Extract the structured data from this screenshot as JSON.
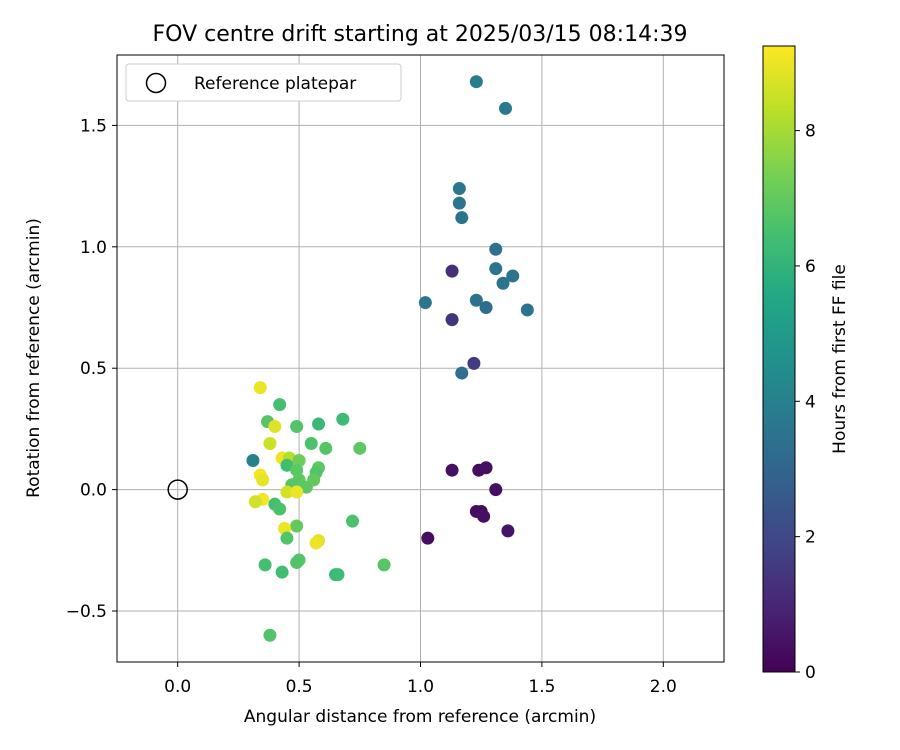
{
  "chart_data": {
    "type": "scatter",
    "title": "FOV centre drift starting at 2025/03/15 08:14:39",
    "xlabel": "Angular distance from reference (arcmin)",
    "ylabel": "Rotation from reference (arcmin)",
    "xlim": [
      -0.25,
      2.25
    ],
    "ylim": [
      -0.71,
      1.79
    ],
    "xticks": [
      0.0,
      0.5,
      1.0,
      1.5,
      2.0
    ],
    "xtick_labels": [
      "0.0",
      "0.5",
      "1.0",
      "1.5",
      "2.0"
    ],
    "yticks": [
      -0.5,
      0.0,
      0.5,
      1.0,
      1.5
    ],
    "ytick_labels": [
      "−0.5",
      "0.0",
      "0.5",
      "1.0",
      "1.5"
    ],
    "grid": true,
    "legend": {
      "position": "top-left",
      "entries": [
        {
          "label": "Reference platepar",
          "marker": "open-circle"
        }
      ]
    },
    "reference_point": {
      "x": 0.0,
      "y": 0.0
    },
    "colorbar": {
      "label": "Hours from first FF file",
      "colormap": "viridis",
      "range": [
        0,
        9.25
      ],
      "ticks": [
        0,
        2,
        4,
        6,
        8
      ],
      "tick_labels": [
        "0",
        "2",
        "4",
        "6",
        "8"
      ]
    },
    "points": [
      {
        "x": 1.23,
        "y": 1.68,
        "hours": 3.8
      },
      {
        "x": 1.35,
        "y": 1.57,
        "hours": 3.7
      },
      {
        "x": 1.16,
        "y": 1.24,
        "hours": 3.6
      },
      {
        "x": 1.16,
        "y": 1.18,
        "hours": 3.6
      },
      {
        "x": 1.17,
        "y": 1.12,
        "hours": 3.5
      },
      {
        "x": 1.31,
        "y": 0.99,
        "hours": 3.4
      },
      {
        "x": 1.31,
        "y": 0.91,
        "hours": 3.5
      },
      {
        "x": 1.38,
        "y": 0.88,
        "hours": 3.5
      },
      {
        "x": 1.34,
        "y": 0.85,
        "hours": 3.5
      },
      {
        "x": 1.13,
        "y": 0.9,
        "hours": 1.2
      },
      {
        "x": 1.02,
        "y": 0.77,
        "hours": 3.6
      },
      {
        "x": 1.23,
        "y": 0.78,
        "hours": 3.4
      },
      {
        "x": 1.27,
        "y": 0.75,
        "hours": 3.3
      },
      {
        "x": 1.44,
        "y": 0.74,
        "hours": 3.5
      },
      {
        "x": 1.13,
        "y": 0.7,
        "hours": 1.4
      },
      {
        "x": 1.22,
        "y": 0.52,
        "hours": 1.6
      },
      {
        "x": 1.17,
        "y": 0.48,
        "hours": 3.4
      },
      {
        "x": 1.13,
        "y": 0.08,
        "hours": 0.4
      },
      {
        "x": 1.24,
        "y": 0.08,
        "hours": 0.3
      },
      {
        "x": 1.27,
        "y": 0.09,
        "hours": 0.4
      },
      {
        "x": 1.31,
        "y": 0.0,
        "hours": 0.4
      },
      {
        "x": 1.23,
        "y": -0.09,
        "hours": 0.3
      },
      {
        "x": 1.25,
        "y": -0.09,
        "hours": 0.3
      },
      {
        "x": 1.26,
        "y": -0.11,
        "hours": 0.4
      },
      {
        "x": 1.36,
        "y": -0.17,
        "hours": 0.5
      },
      {
        "x": 1.03,
        "y": -0.2,
        "hours": 0.3
      },
      {
        "x": 0.31,
        "y": 0.12,
        "hours": 4.0
      },
      {
        "x": 0.34,
        "y": 0.42,
        "hours": 9.0
      },
      {
        "x": 0.42,
        "y": 0.35,
        "hours": 6.5
      },
      {
        "x": 0.37,
        "y": 0.28,
        "hours": 6.8
      },
      {
        "x": 0.49,
        "y": 0.26,
        "hours": 6.7
      },
      {
        "x": 0.58,
        "y": 0.27,
        "hours": 6.2
      },
      {
        "x": 0.68,
        "y": 0.29,
        "hours": 6.3
      },
      {
        "x": 0.4,
        "y": 0.26,
        "hours": 8.8
      },
      {
        "x": 0.38,
        "y": 0.19,
        "hours": 8.5
      },
      {
        "x": 0.55,
        "y": 0.19,
        "hours": 6.6
      },
      {
        "x": 0.61,
        "y": 0.17,
        "hours": 6.8
      },
      {
        "x": 0.75,
        "y": 0.17,
        "hours": 6.9
      },
      {
        "x": 0.43,
        "y": 0.13,
        "hours": 9.0
      },
      {
        "x": 0.46,
        "y": 0.13,
        "hours": 8.2
      },
      {
        "x": 0.5,
        "y": 0.12,
        "hours": 7.2
      },
      {
        "x": 0.45,
        "y": 0.1,
        "hours": 6.4
      },
      {
        "x": 0.49,
        "y": 0.08,
        "hours": 6.9
      },
      {
        "x": 0.58,
        "y": 0.09,
        "hours": 6.9
      },
      {
        "x": 0.57,
        "y": 0.07,
        "hours": 6.7
      },
      {
        "x": 0.34,
        "y": 0.06,
        "hours": 9.1
      },
      {
        "x": 0.35,
        "y": 0.04,
        "hours": 8.9
      },
      {
        "x": 0.5,
        "y": 0.04,
        "hours": 6.9
      },
      {
        "x": 0.56,
        "y": 0.04,
        "hours": 7.0
      },
      {
        "x": 0.47,
        "y": 0.02,
        "hours": 6.8
      },
      {
        "x": 0.53,
        "y": 0.01,
        "hours": 6.9
      },
      {
        "x": 0.45,
        "y": -0.01,
        "hours": 8.6
      },
      {
        "x": 0.49,
        "y": -0.01,
        "hours": 9.0
      },
      {
        "x": 0.35,
        "y": -0.04,
        "hours": 9.1
      },
      {
        "x": 0.32,
        "y": -0.05,
        "hours": 8.6
      },
      {
        "x": 0.4,
        "y": -0.06,
        "hours": 6.5
      },
      {
        "x": 0.42,
        "y": -0.08,
        "hours": 6.6
      },
      {
        "x": 0.72,
        "y": -0.13,
        "hours": 6.6
      },
      {
        "x": 0.49,
        "y": -0.15,
        "hours": 7.0
      },
      {
        "x": 0.44,
        "y": -0.16,
        "hours": 9.0
      },
      {
        "x": 0.45,
        "y": -0.2,
        "hours": 6.7
      },
      {
        "x": 0.58,
        "y": -0.21,
        "hours": 8.8
      },
      {
        "x": 0.57,
        "y": -0.22,
        "hours": 9.0
      },
      {
        "x": 0.5,
        "y": -0.29,
        "hours": 6.8
      },
      {
        "x": 0.49,
        "y": -0.3,
        "hours": 6.7
      },
      {
        "x": 0.36,
        "y": -0.31,
        "hours": 6.5
      },
      {
        "x": 0.85,
        "y": -0.31,
        "hours": 6.8
      },
      {
        "x": 0.43,
        "y": -0.34,
        "hours": 6.4
      },
      {
        "x": 0.65,
        "y": -0.35,
        "hours": 6.2
      },
      {
        "x": 0.66,
        "y": -0.35,
        "hours": 6.3
      },
      {
        "x": 0.38,
        "y": -0.6,
        "hours": 6.7
      }
    ]
  }
}
